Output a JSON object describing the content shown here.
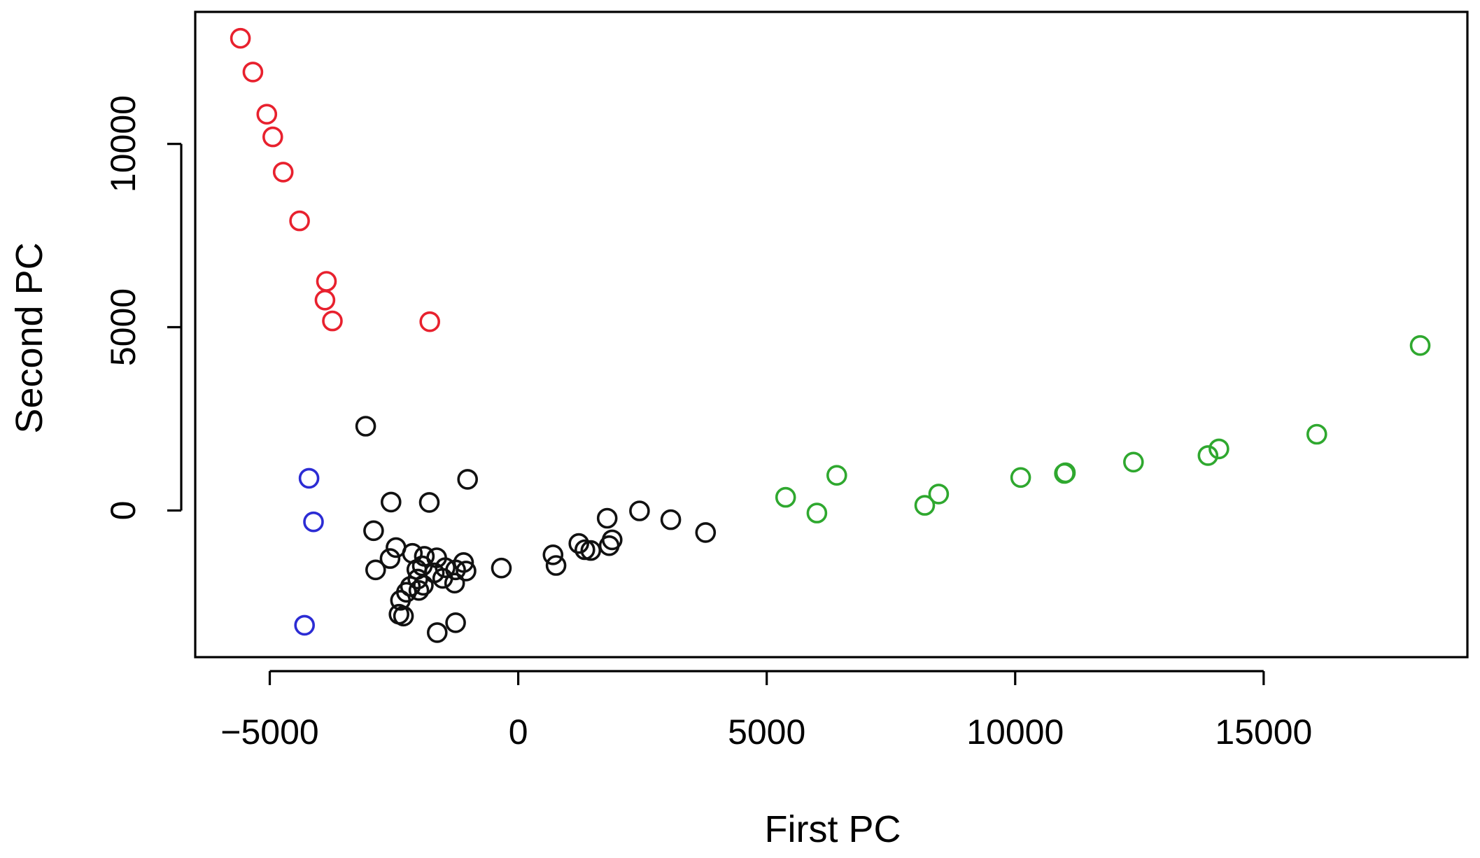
{
  "chart_data": {
    "type": "scatter",
    "title": "",
    "xlabel": "First PC",
    "ylabel": "Second PC",
    "xlim": [
      -6500,
      19100
    ],
    "ylim": [
      -4000,
      13600
    ],
    "x_ticks": [
      {
        "value": -5000,
        "label": "−5000"
      },
      {
        "value": 0,
        "label": "0"
      },
      {
        "value": 5000,
        "label": "5000"
      },
      {
        "value": 10000,
        "label": "10000"
      },
      {
        "value": 15000,
        "label": "15000"
      }
    ],
    "y_ticks": [
      {
        "value": 0,
        "label": "0"
      },
      {
        "value": 5000,
        "label": "5000"
      },
      {
        "value": 10000,
        "label": "10000"
      }
    ],
    "grid": false,
    "legend": "none",
    "marker": "open-circle",
    "series": [
      {
        "color": "#e8212e",
        "points": [
          [
            -5590,
            12880
          ],
          [
            -5340,
            11960
          ],
          [
            -5060,
            10810
          ],
          [
            -4940,
            10190
          ],
          [
            -4730,
            9230
          ],
          [
            -4400,
            7900
          ],
          [
            -3860,
            6250
          ],
          [
            -3890,
            5740
          ],
          [
            -3740,
            5170
          ],
          [
            -1780,
            5150
          ]
        ]
      },
      {
        "color": "#2c2cd4",
        "points": [
          [
            -4210,
            880
          ],
          [
            -4120,
            -310
          ],
          [
            -4300,
            -3130
          ]
        ]
      },
      {
        "color": "#2fa82f",
        "points": [
          [
            5380,
            360
          ],
          [
            6010,
            -70
          ],
          [
            6410,
            960
          ],
          [
            8180,
            140
          ],
          [
            8460,
            450
          ],
          [
            10110,
            900
          ],
          [
            10990,
            1010
          ],
          [
            11010,
            1030
          ],
          [
            12380,
            1320
          ],
          [
            13880,
            1500
          ],
          [
            14100,
            1680
          ],
          [
            16070,
            2080
          ],
          [
            18150,
            4500
          ]
        ]
      },
      {
        "color": "#111111",
        "points": [
          [
            -3070,
            2300
          ],
          [
            -2560,
            230
          ],
          [
            -1790,
            220
          ],
          [
            -1020,
            850
          ],
          [
            -2910,
            -550
          ],
          [
            -2460,
            -1010
          ],
          [
            -2580,
            -1310
          ],
          [
            -2870,
            -1620
          ],
          [
            -2130,
            -1170
          ],
          [
            -1890,
            -1250
          ],
          [
            -1640,
            -1290
          ],
          [
            -1100,
            -1420
          ],
          [
            -1930,
            -1510
          ],
          [
            -2040,
            -1610
          ],
          [
            -1690,
            -1700
          ],
          [
            -1470,
            -1560
          ],
          [
            -1260,
            -1620
          ],
          [
            -1050,
            -1650
          ],
          [
            -2020,
            -1870
          ],
          [
            -1520,
            -1850
          ],
          [
            -1280,
            -1980
          ],
          [
            -2170,
            -2070
          ],
          [
            -1910,
            -2040
          ],
          [
            -2250,
            -2230
          ],
          [
            -2370,
            -2450
          ],
          [
            -2000,
            -2180
          ],
          [
            -2400,
            -2830
          ],
          [
            -2310,
            -2880
          ],
          [
            -1260,
            -3060
          ],
          [
            -1630,
            -3330
          ],
          [
            -340,
            -1570
          ],
          [
            700,
            -1210
          ],
          [
            760,
            -1500
          ],
          [
            1220,
            -900
          ],
          [
            1340,
            -1070
          ],
          [
            1460,
            -1090
          ],
          [
            1830,
            -960
          ],
          [
            1890,
            -800
          ],
          [
            1790,
            -210
          ],
          [
            2440,
            -10
          ],
          [
            3070,
            -250
          ],
          [
            3770,
            -600
          ]
        ]
      }
    ]
  }
}
